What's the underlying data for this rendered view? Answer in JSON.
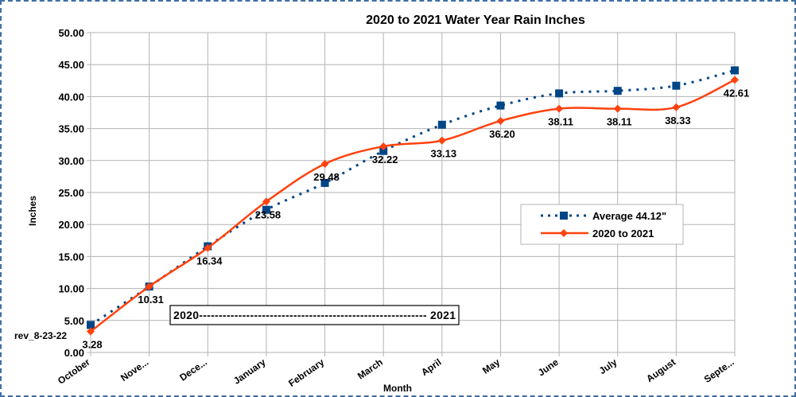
{
  "chart_data": {
    "type": "line",
    "title": "2020 to 2021 Water Year Rain Inches",
    "xlabel": "Month",
    "ylabel": "Inches",
    "ylim": [
      0,
      50
    ],
    "yticks": [
      "0.00",
      "5.00",
      "10.00",
      "15.00",
      "20.00",
      "25.00",
      "30.00",
      "35.00",
      "40.00",
      "45.00",
      "50.00"
    ],
    "categories": [
      "October",
      "Nove...",
      "Dece...",
      "January",
      "February",
      "March",
      "April",
      "May",
      "June",
      "July",
      "August",
      "Septe..."
    ],
    "grid": true,
    "legend_position": "right",
    "series": [
      {
        "name": "Average 44.12\"",
        "color": "#004586",
        "style": "dotted",
        "marker": "square",
        "values": [
          4.3,
          10.3,
          16.6,
          22.3,
          26.5,
          31.5,
          35.6,
          38.6,
          40.5,
          40.9,
          41.7,
          44.1
        ]
      },
      {
        "name": "2020 to 2021",
        "color": "#ff420e",
        "style": "solid",
        "marker": "diamond",
        "values": [
          3.28,
          10.31,
          16.34,
          23.58,
          29.48,
          32.22,
          33.13,
          36.2,
          38.11,
          38.11,
          38.33,
          42.61
        ],
        "labels": [
          "3.28",
          "10.31",
          "16.34",
          "23.58",
          "29.48",
          "32.22",
          "33.13",
          "36.20",
          "38.11",
          "38.11",
          "38.33",
          "42.61"
        ]
      }
    ],
    "annotations": {
      "revision": "rev_8-23-22",
      "range_box": "2020---------------------------------------------------------- 2021"
    }
  }
}
